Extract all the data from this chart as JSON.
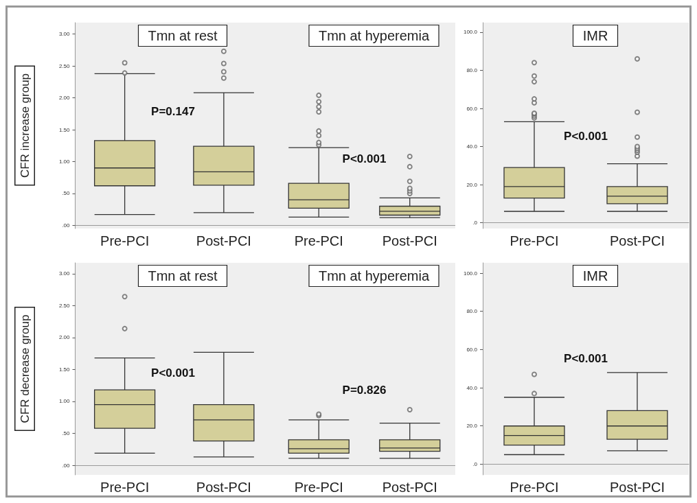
{
  "chart_data": [
    {
      "type": "box",
      "title": "Tmn at rest",
      "ylabel": "CFR increase group",
      "categories": [
        "Pre-PCI",
        "Post-PCI"
      ],
      "ylim": [
        -0.05,
        3.18
      ],
      "yticks": [
        {
          "value": 0,
          "label": ".00"
        },
        {
          "value": 0.5,
          "label": ".50"
        },
        {
          "value": 1,
          "label": "1.00"
        },
        {
          "value": 1.5,
          "label": "1.50"
        },
        {
          "value": 2,
          "label": "2.00"
        },
        {
          "value": 2.5,
          "label": "2.50"
        },
        {
          "value": 3,
          "label": "3.00"
        }
      ],
      "annotations": [
        "P=0.147"
      ],
      "series": [
        {
          "color": "#d4cf9a",
          "boxes": [
            {
              "low": 0.17,
              "q1": 0.62,
              "median": 0.9,
              "q3": 1.33,
              "high": 2.38,
              "outliers": [
                2.39,
                2.55
              ]
            },
            {
              "low": 0.2,
              "q1": 0.63,
              "median": 0.84,
              "q3": 1.24,
              "high": 2.08,
              "outliers": [
                2.31,
                2.41,
                2.54,
                2.73
              ]
            }
          ]
        }
      ]
    },
    {
      "type": "box",
      "title": "Tmn at hyperemia",
      "categories": [
        "Pre-PCI",
        "Post-PCI"
      ],
      "ylim": [
        -0.05,
        3.18
      ],
      "tick_labels": "x",
      "annotations": [
        "P<0.001"
      ],
      "series": [
        {
          "color": "#d4cf9a",
          "boxes": [
            {
              "low": 0.13,
              "q1": 0.27,
              "median": 0.4,
              "q3": 0.66,
              "high": 1.22,
              "outliers": [
                1.26,
                1.3,
                1.41,
                1.48,
                1.78,
                1.86,
                1.94,
                2.04
              ]
            },
            {
              "low": 0.12,
              "q1": 0.16,
              "median": 0.22,
              "q3": 0.3,
              "high": 0.43,
              "outliers": [
                0.5,
                0.54,
                0.58,
                0.69,
                0.92,
                1.08
              ]
            }
          ]
        }
      ]
    },
    {
      "type": "box",
      "title": "IMR",
      "categories": [
        "Pre-PCI",
        "Post-PCI"
      ],
      "ylim": [
        -3,
        105
      ],
      "yticks": [
        {
          "value": 0,
          "label": ".0"
        },
        {
          "value": 20,
          "label": "20.0"
        },
        {
          "value": 40,
          "label": "40.0"
        },
        {
          "value": 60,
          "label": "60.0"
        },
        {
          "value": 80,
          "label": "80.0"
        },
        {
          "value": 100,
          "label": "100.0"
        }
      ],
      "annotations": [
        "P<0.001"
      ],
      "series": [
        {
          "color": "#d4cf9a",
          "boxes": [
            {
              "low": 6,
              "q1": 13,
              "median": 19,
              "q3": 29,
              "high": 53,
              "outliers": [
                55,
                56,
                57,
                57.5,
                63,
                65,
                74,
                77,
                84
              ]
            },
            {
              "low": 6,
              "q1": 10,
              "median": 14,
              "q3": 19,
              "high": 31,
              "outliers": [
                35,
                37,
                38,
                39,
                40,
                45,
                58,
                86
              ]
            }
          ]
        }
      ]
    },
    {
      "type": "box",
      "title": "Tmn at rest",
      "ylabel": "CFR decrease group",
      "categories": [
        "Pre-PCI",
        "Post-PCI"
      ],
      "ylim": [
        -0.15,
        3.17
      ],
      "yticks": [
        {
          "value": 0,
          "label": ".00"
        },
        {
          "value": 0.5,
          "label": ".50"
        },
        {
          "value": 1,
          "label": "1.00"
        },
        {
          "value": 1.5,
          "label": "1.50"
        },
        {
          "value": 2,
          "label": "2.00"
        },
        {
          "value": 2.5,
          "label": "2.50"
        },
        {
          "value": 3,
          "label": "3.00"
        }
      ],
      "annotations": [
        "P<0.001"
      ],
      "series": [
        {
          "color": "#d4cf9a",
          "boxes": [
            {
              "low": 0.19,
              "q1": 0.58,
              "median": 0.95,
              "q3": 1.18,
              "high": 1.68,
              "outliers": [
                2.14,
                2.64
              ]
            },
            {
              "low": 0.13,
              "q1": 0.38,
              "median": 0.71,
              "q3": 0.95,
              "high": 1.77
            }
          ]
        }
      ]
    },
    {
      "type": "box",
      "title": "Tmn at hyperemia",
      "categories": [
        "Pre-PCI",
        "Post-PCI"
      ],
      "ylim": [
        -0.15,
        3.17
      ],
      "tick_labels": "x",
      "annotations": [
        "P=0.826"
      ],
      "series": [
        {
          "color": "#d4cf9a",
          "boxes": [
            {
              "low": 0.11,
              "q1": 0.19,
              "median": 0.26,
              "q3": 0.4,
              "high": 0.71,
              "outliers": [
                0.78,
                0.8
              ]
            },
            {
              "low": 0.11,
              "q1": 0.22,
              "median": 0.27,
              "q3": 0.4,
              "high": 0.66,
              "outliers": [
                0.87
              ]
            }
          ]
        }
      ]
    },
    {
      "type": "box",
      "title": "IMR",
      "categories": [
        "Pre-PCI",
        "Post-PCI"
      ],
      "ylim": [
        -5.6,
        105.4
      ],
      "yticks": [
        {
          "value": 0,
          "label": ".0"
        },
        {
          "value": 20,
          "label": "20.0"
        },
        {
          "value": 40,
          "label": "40.0"
        },
        {
          "value": 60,
          "label": "60.0"
        },
        {
          "value": 80,
          "label": "80.0"
        },
        {
          "value": 100,
          "label": "100.0"
        }
      ],
      "annotations": [
        "P<0.001"
      ],
      "series": [
        {
          "color": "#d4cf9a",
          "boxes": [
            {
              "low": 5,
              "q1": 10,
              "median": 15,
              "q3": 20,
              "high": 35,
              "outliers": [
                37,
                47
              ]
            },
            {
              "low": 7,
              "q1": 13,
              "median": 20,
              "q3": 28,
              "high": 48
            }
          ]
        }
      ]
    }
  ]
}
